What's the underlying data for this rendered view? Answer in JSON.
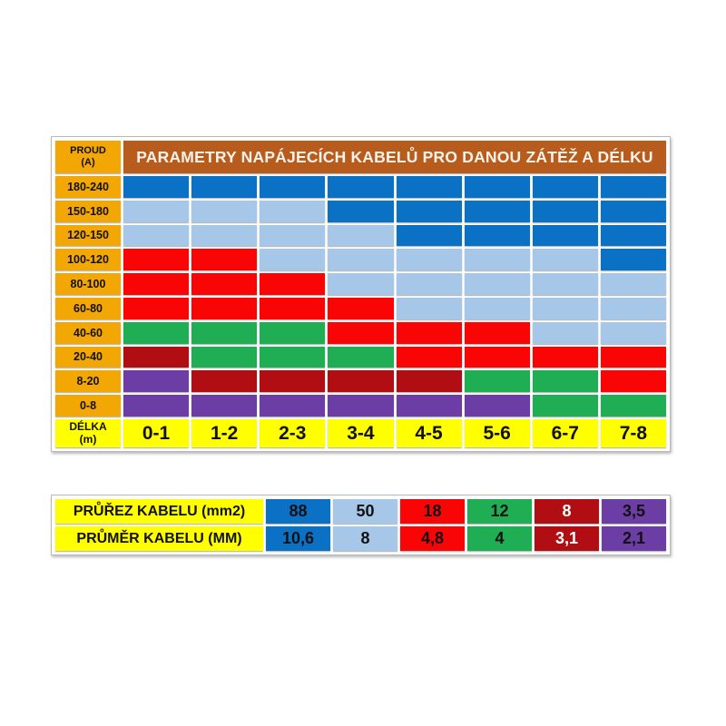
{
  "colors": {
    "blue": "#0b71c5",
    "lightblue": "#a7c7e8",
    "red": "#f90505",
    "green": "#1fae53",
    "darkred": "#b00e12",
    "purple": "#6c3da4",
    "gold": "#f2a705",
    "yellow": "#ffff00",
    "title_bg": "#b85c1e",
    "title_text": "#fbf3ea",
    "cell_text": "#111111",
    "white_text": "#ffffff"
  },
  "table": {
    "title": "PARAMETRY NAPÁJECÍCH KABELŮ PRO DANOU ZÁTĚŽ A DÉLKU",
    "row_header_line1": "PROUD",
    "row_header_line2": "(A)",
    "col_header_line1": "DÉLKA",
    "col_header_line2": "(m)",
    "current_labels": [
      "180-240",
      "150-180",
      "120-150",
      "100-120",
      "80-100",
      "60-80",
      "40-60",
      "20-40",
      "8-20",
      "0-8"
    ],
    "length_labels": [
      "0-1",
      "1-2",
      "2-3",
      "3-4",
      "4-5",
      "5-6",
      "6-7",
      "7-8"
    ],
    "matrix_colors": [
      [
        "blue",
        "blue",
        "blue",
        "blue",
        "blue",
        "blue",
        "blue",
        "blue"
      ],
      [
        "lightblue",
        "lightblue",
        "lightblue",
        "blue",
        "blue",
        "blue",
        "blue",
        "blue"
      ],
      [
        "lightblue",
        "lightblue",
        "lightblue",
        "lightblue",
        "blue",
        "blue",
        "blue",
        "blue"
      ],
      [
        "red",
        "red",
        "lightblue",
        "lightblue",
        "lightblue",
        "lightblue",
        "lightblue",
        "blue"
      ],
      [
        "red",
        "red",
        "red",
        "lightblue",
        "lightblue",
        "lightblue",
        "lightblue",
        "lightblue"
      ],
      [
        "red",
        "red",
        "red",
        "red",
        "lightblue",
        "lightblue",
        "lightblue",
        "lightblue"
      ],
      [
        "green",
        "green",
        "green",
        "red",
        "red",
        "red",
        "lightblue",
        "lightblue"
      ],
      [
        "darkred",
        "green",
        "green",
        "green",
        "red",
        "red",
        "red",
        "red"
      ],
      [
        "purple",
        "darkred",
        "darkred",
        "darkred",
        "darkred",
        "green",
        "green",
        "red"
      ],
      [
        "purple",
        "purple",
        "purple",
        "purple",
        "purple",
        "purple",
        "green",
        "green"
      ]
    ]
  },
  "legend": {
    "rows": [
      {
        "label": "PRŮŘEZ KABELU (mm2)",
        "values": [
          {
            "text": "88",
            "color": "blue"
          },
          {
            "text": "50",
            "color": "lightblue"
          },
          {
            "text": "18",
            "color": "red"
          },
          {
            "text": "12",
            "color": "green"
          },
          {
            "text": "8",
            "color": "darkred"
          },
          {
            "text": "3,5",
            "color": "purple"
          }
        ]
      },
      {
        "label": "PRŮMĚR KABELU (MM)",
        "values": [
          {
            "text": "10,6",
            "color": "blue"
          },
          {
            "text": "8",
            "color": "lightblue"
          },
          {
            "text": "4,8",
            "color": "red"
          },
          {
            "text": "4",
            "color": "green"
          },
          {
            "text": "3,1",
            "color": "darkred"
          },
          {
            "text": "2,1",
            "color": "purple"
          }
        ]
      }
    ]
  },
  "chart_data": {
    "type": "heatmap",
    "title": "PARAMETRY NAPÁJECÍCH KABELŮ PRO DANOU ZÁTĚŽ A DÉLKU",
    "xlabel": "DÉLKA (m)",
    "ylabel": "PROUD (A)",
    "x_categories": [
      "0-1",
      "1-2",
      "2-3",
      "3-4",
      "4-5",
      "5-6",
      "6-7",
      "7-8"
    ],
    "y_categories": [
      "180-240",
      "150-180",
      "120-150",
      "100-120",
      "80-100",
      "60-80",
      "40-60",
      "20-40",
      "8-20",
      "0-8"
    ],
    "values_cross_section_mm2": [
      [
        88,
        88,
        88,
        88,
        88,
        88,
        88,
        88
      ],
      [
        50,
        50,
        50,
        88,
        88,
        88,
        88,
        88
      ],
      [
        50,
        50,
        50,
        50,
        88,
        88,
        88,
        88
      ],
      [
        18,
        18,
        50,
        50,
        50,
        50,
        50,
        88
      ],
      [
        18,
        18,
        18,
        50,
        50,
        50,
        50,
        50
      ],
      [
        18,
        18,
        18,
        18,
        50,
        50,
        50,
        50
      ],
      [
        12,
        12,
        12,
        18,
        18,
        18,
        50,
        50
      ],
      [
        8,
        12,
        12,
        12,
        18,
        18,
        18,
        18
      ],
      [
        3.5,
        8,
        8,
        8,
        8,
        12,
        12,
        18
      ],
      [
        3.5,
        3.5,
        3.5,
        3.5,
        3.5,
        3.5,
        12,
        12
      ]
    ],
    "color_scale": [
      {
        "color": "#0b71c5",
        "cross_section_mm2": 88,
        "diameter_mm": 10.6
      },
      {
        "color": "#a7c7e8",
        "cross_section_mm2": 50,
        "diameter_mm": 8
      },
      {
        "color": "#f90505",
        "cross_section_mm2": 18,
        "diameter_mm": 4.8
      },
      {
        "color": "#1fae53",
        "cross_section_mm2": 12,
        "diameter_mm": 4
      },
      {
        "color": "#b00e12",
        "cross_section_mm2": 8,
        "diameter_mm": 3.1
      },
      {
        "color": "#6c3da4",
        "cross_section_mm2": 3.5,
        "diameter_mm": 2.1
      }
    ],
    "legend_position": "bottom",
    "grid": false
  }
}
